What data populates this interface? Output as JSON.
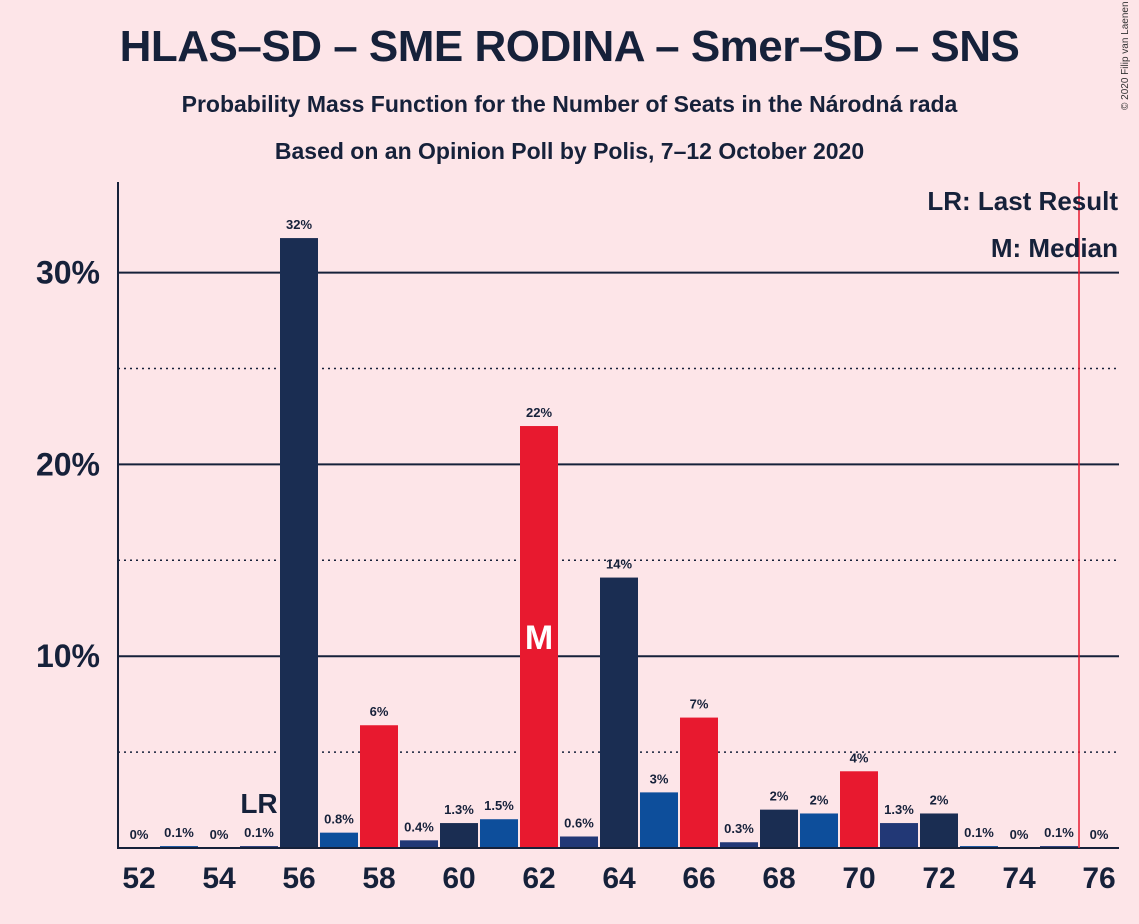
{
  "title": "HLAS–SD – SME RODINA – Smer–SD – SNS",
  "subtitle1": "Probability Mass Function for the Number of Seats in the Národná rada",
  "subtitle2": "Based on an Opinion Poll by Polis, 7–12 October 2020",
  "copyright": "© 2020 Filip van Laenen",
  "legend": {
    "last_result": "LR: Last Result",
    "median": "M: Median"
  },
  "colors": {
    "background": "#FDE5E8",
    "hlas_sd": "#1A2D52",
    "sme_rodina": "#0D4E9B",
    "smer_sd": "#E8192F",
    "sns": "#223876",
    "majority_line": "#E8192F"
  },
  "chart_data": {
    "type": "bar",
    "x": [
      52,
      53,
      54,
      55,
      56,
      57,
      58,
      59,
      60,
      61,
      62,
      63,
      64,
      65,
      66,
      67,
      68,
      69,
      70,
      71,
      72,
      73,
      74,
      75,
      76
    ],
    "values": [
      0,
      0.1,
      0,
      0.1,
      31.8,
      0.8,
      6.4,
      0.4,
      1.3,
      1.5,
      22.0,
      0.6,
      14.1,
      2.9,
      6.8,
      0.3,
      2.0,
      1.8,
      4.0,
      1.3,
      1.8,
      0.1,
      0,
      0.1,
      0
    ],
    "labels": [
      "0%",
      "0.1%",
      "0%",
      "0.1%",
      "32%",
      "0.8%",
      "6%",
      "0.4%",
      "1.3%",
      "1.5%",
      "22%",
      "0.6%",
      "14%",
      "3%",
      "7%",
      "0.3%",
      "2%",
      "2%",
      "4%",
      "1.3%",
      "2%",
      "0.1%",
      "0%",
      "0.1%",
      "0%"
    ],
    "bar_colors": [
      "#1A2D52",
      "#0D4E9B",
      "#E8192F",
      "#223876",
      "#1A2D52",
      "#0D4E9B",
      "#E8192F",
      "#223876",
      "#1A2D52",
      "#0D4E9B",
      "#E8192F",
      "#223876",
      "#1A2D52",
      "#0D4E9B",
      "#E8192F",
      "#223876",
      "#1A2D52",
      "#0D4E9B",
      "#E8192F",
      "#223876",
      "#1A2D52",
      "#0D4E9B",
      "#E8192F",
      "#223876",
      "#1A2D52"
    ],
    "x_ticks": [
      "52",
      "54",
      "56",
      "58",
      "60",
      "62",
      "64",
      "66",
      "68",
      "70",
      "72",
      "74",
      "76"
    ],
    "y_ticks": [
      "10%",
      "20%",
      "30%"
    ],
    "ylim": [
      0,
      34
    ],
    "y_solid_grid": [
      10,
      20,
      30
    ],
    "y_dotted_grid": [
      5,
      15,
      25
    ],
    "last_result": {
      "x": 55,
      "label": "LR"
    },
    "median": {
      "x": 62,
      "label": "M"
    },
    "majority_line_x": 75.5
  }
}
